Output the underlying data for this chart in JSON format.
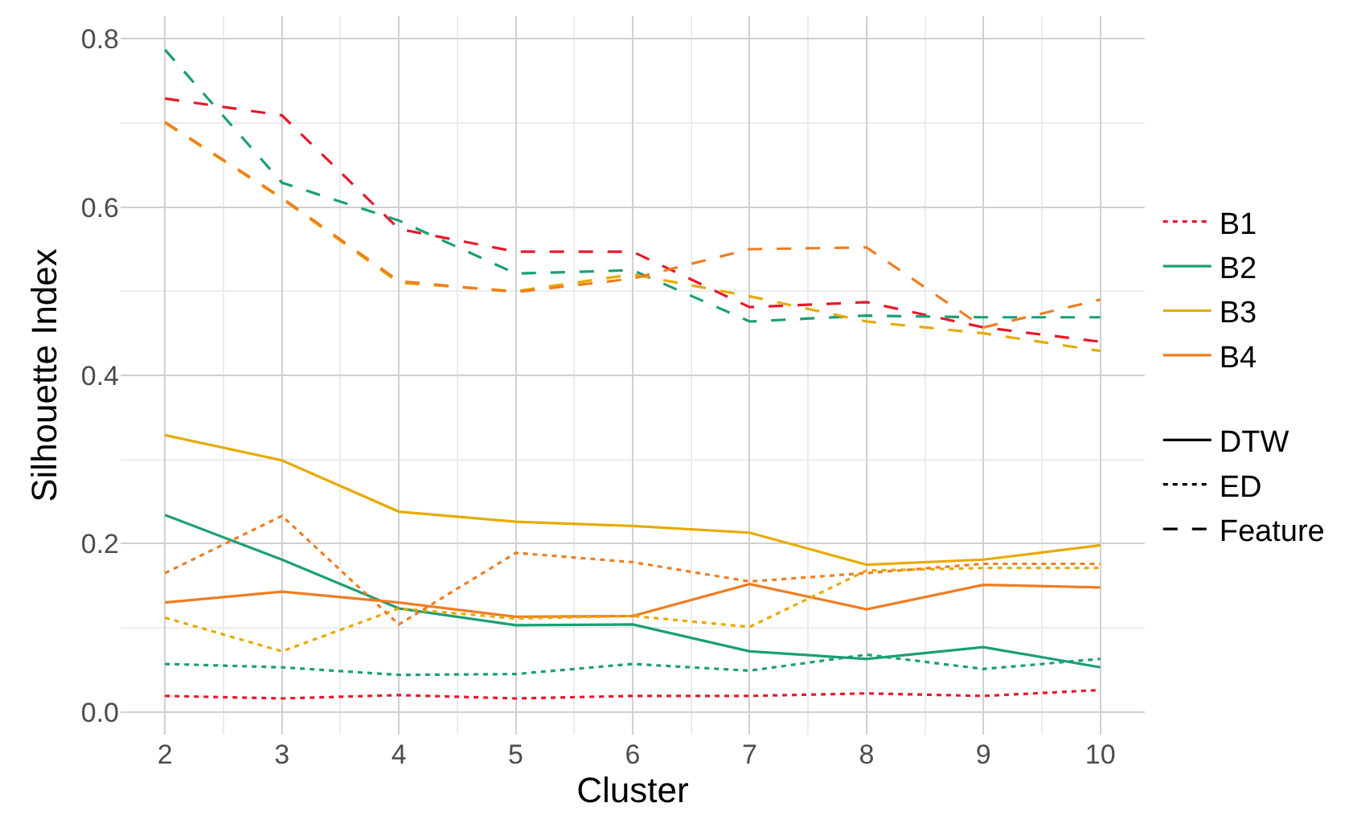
{
  "chart_data": {
    "type": "line",
    "xlabel": "Cluster",
    "ylabel": "Silhouette Index",
    "x": [
      2,
      3,
      4,
      5,
      6,
      7,
      8,
      9,
      10
    ],
    "series": [
      {
        "name": "B2",
        "color": "#1b9e77",
        "line_style": "solid",
        "values": [
          0.234,
          0.181,
          0.123,
          0.103,
          0.104,
          0.072,
          0.063,
          0.077,
          0.053
        ]
      },
      {
        "name": "B3",
        "color": "#e6ab02",
        "line_style": "solid",
        "values": [
          0.329,
          0.299,
          0.238,
          0.226,
          0.221,
          0.213,
          0.175,
          0.181,
          0.198
        ]
      },
      {
        "name": "B4",
        "color": "#ef7d22",
        "line_style": "solid",
        "values": [
          0.13,
          0.143,
          0.13,
          0.113,
          0.114,
          0.152,
          0.122,
          0.151,
          0.148
        ]
      },
      {
        "name": "B1",
        "color": "#e8182b",
        "line_style": "dotted",
        "values": [
          0.019,
          0.016,
          0.02,
          0.016,
          0.019,
          0.019,
          0.022,
          0.019,
          0.026
        ]
      },
      {
        "color": "#1b9e77",
        "line_style": "dotted",
        "values": [
          0.057,
          0.053,
          0.044,
          0.045,
          0.057,
          0.049,
          0.068,
          0.051,
          0.063
        ]
      },
      {
        "color": "#e6ab02",
        "line_style": "dotted",
        "values": [
          0.112,
          0.072,
          0.123,
          0.111,
          0.114,
          0.101,
          0.168,
          0.171,
          0.171
        ]
      },
      {
        "color": "#ef7d22",
        "line_style": "dotted",
        "values": [
          0.165,
          0.233,
          0.104,
          0.189,
          0.178,
          0.155,
          0.165,
          0.176,
          0.176
        ]
      },
      {
        "color": "#e8182b",
        "line_style": "dashed",
        "values": [
          0.729,
          0.709,
          0.574,
          0.547,
          0.547,
          0.481,
          0.487,
          0.457,
          0.44
        ]
      },
      {
        "color": "#1b9e77",
        "line_style": "dashed",
        "values": [
          0.787,
          0.629,
          0.584,
          0.521,
          0.525,
          0.464,
          0.471,
          0.469,
          0.469
        ]
      },
      {
        "color": "#e6ab02",
        "line_style": "dashed",
        "values": [
          0.7,
          0.61,
          0.51,
          0.5,
          0.52,
          0.494,
          0.464,
          0.45,
          0.429
        ]
      },
      {
        "color": "#ef7d22",
        "line_style": "dashed",
        "values": [
          0.701,
          0.611,
          0.512,
          0.499,
          0.515,
          0.55,
          0.552,
          0.457,
          0.49
        ]
      }
    ],
    "annotations": [
      "DTW",
      "ED",
      "Feature"
    ],
    "xlim": [
      1.62,
      10.38
    ],
    "ylim": [
      -0.027,
      0.827
    ],
    "xticks": [
      2,
      3,
      4,
      5,
      6,
      7,
      8,
      9,
      10
    ],
    "yticks": [
      {
        "value": 0,
        "label": "0.0"
      },
      {
        "value": 0.2,
        "label": "0.2"
      },
      {
        "value": 0.4,
        "label": "0.4"
      },
      {
        "value": 0.6,
        "label": "0.6"
      },
      {
        "value": 0.8,
        "label": "0.8"
      }
    ],
    "grid": true,
    "legend": "right",
    "marker": "none"
  }
}
